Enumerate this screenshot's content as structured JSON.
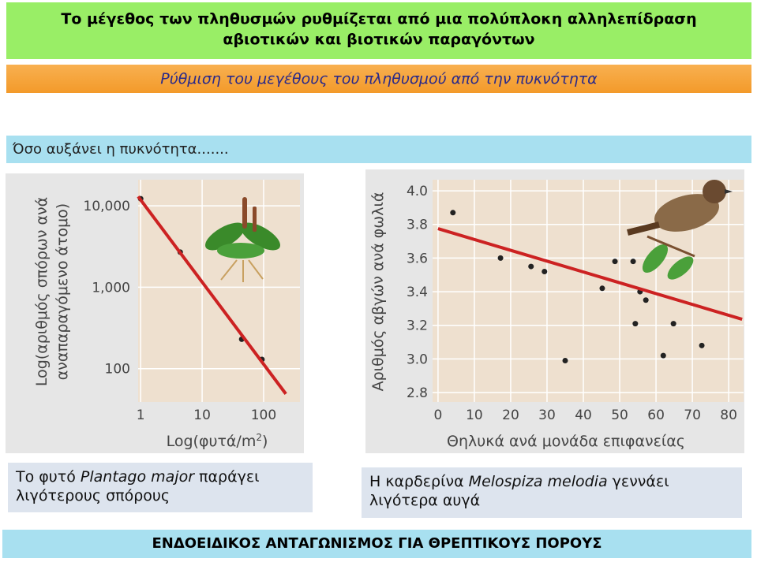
{
  "title": [
    "Το μέγεθος των πληθυσμών ρυθμίζεται από μια πολύπλοκη αλληλεπίδραση",
    "αβιοτικών και βιοτικών παραγόντων"
  ],
  "subtitle": "Ρύθμιση του μεγέθους του πληθυσμού από την πυκνότητα",
  "intro": "Όσο αυξάνει η πυκνότητα.......",
  "caption_left": [
    "Το φυτό ",
    "Plantago major",
    " παράγει λιγότερους σπόρους"
  ],
  "caption_right": [
    "Η καρδερίνα ",
    "Melospiza melodia",
    " γεννάει λιγότερα αυγά"
  ],
  "footer": "ΕΝΔΟΕΙΔΙΚΟΣ ΑΝΤΑΓΩΝΙΣΜΟΣ ΓΙΑ ΘΡΕΠΤΙΚΟΥΣ ΠΟΡΟΥΣ",
  "chart_data": [
    {
      "type": "scatter",
      "y_label": [
        "Log(αριθμός σπόρων ανά",
        "αναπαραγόμενο άτομο)"
      ],
      "x_label": [
        "Log(φυτά/m",
        "2",
        ")"
      ],
      "xscale": "log",
      "yscale": "log",
      "xlim": [
        0.91,
        390
      ],
      "ylim": [
        39,
        20900
      ],
      "xticks": [
        1,
        10,
        100
      ],
      "yticks": [
        100,
        {
          "value": 1000,
          "label": "1,000"
        },
        {
          "value": 10000,
          "label": "10,000"
        }
      ],
      "series": [
        {
          "color": "#222222",
          "x": [
            1,
            4.4,
            44,
            94
          ],
          "values": [
            12200,
            2700,
            230,
            130
          ]
        },
        {
          "color": "#cc2222",
          "line": true,
          "x": [
            0.91,
            230
          ],
          "values": [
            13000,
            49
          ]
        }
      ]
    },
    {
      "type": "scatter",
      "y_label": [
        "Αριθμός αβγών ανά φωλιά"
      ],
      "x_label": [
        "Θηλυκά ανά μονάδα επιφανείας"
      ],
      "xscale": "linear",
      "yscale": "linear",
      "xlim": [
        -1.5,
        84.1
      ],
      "ylim": [
        2.744,
        4.066
      ],
      "xticks": [
        0,
        10,
        20,
        30,
        40,
        50,
        60,
        70,
        80
      ],
      "yticks": [
        {
          "value": 2.8,
          "label": "2.8"
        },
        {
          "value": 3,
          "label": "3.0"
        },
        {
          "value": 3.2,
          "label": "3.2"
        },
        {
          "value": 3.4,
          "label": "3.4"
        },
        {
          "value": 3.6,
          "label": "3.6"
        },
        {
          "value": 3.8,
          "label": "3.8"
        },
        {
          "value": 4,
          "label": "4.0"
        }
      ],
      "series": [
        {
          "color": "#222222",
          "x": [
            4.1,
            17.2,
            25.6,
            29.3,
            35,
            45.2,
            48.7,
            53.7,
            54.3,
            55.6,
            57.2,
            62,
            64.8,
            72.6
          ],
          "values": [
            3.87,
            3.6,
            3.55,
            3.52,
            2.99,
            3.42,
            3.58,
            3.58,
            3.21,
            3.4,
            3.35,
            3.02,
            3.21,
            3.08
          ]
        },
        {
          "color": "#cc2222",
          "line": true,
          "x": [
            0,
            83.7
          ],
          "values": [
            3.775,
            3.236
          ]
        }
      ]
    }
  ]
}
